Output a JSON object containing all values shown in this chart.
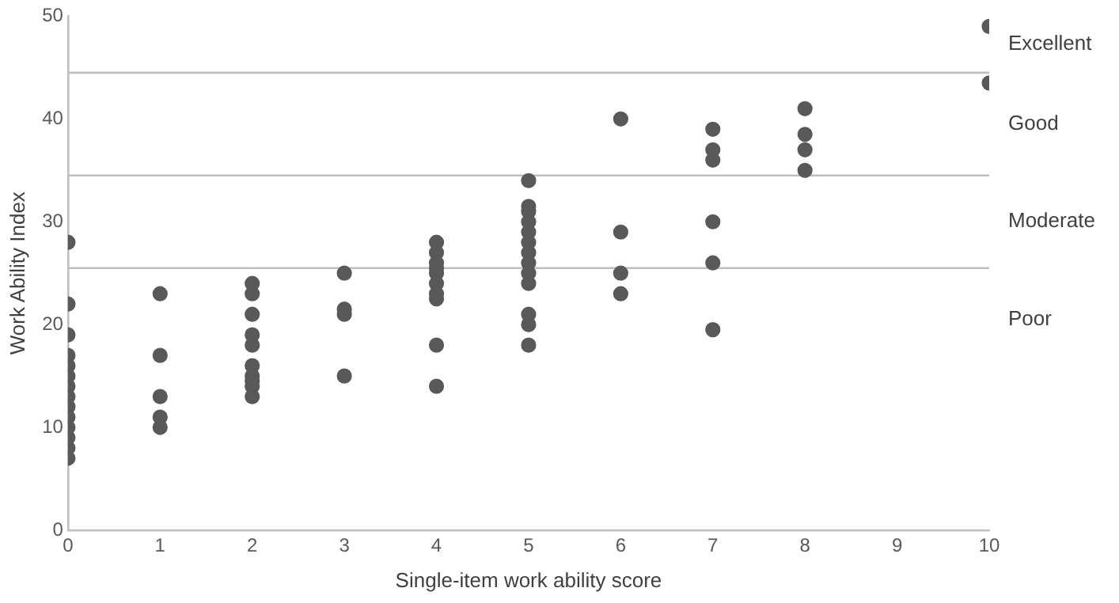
{
  "chart_data": {
    "type": "scatter",
    "xlabel": "Single-item work ability score",
    "ylabel": "Work Ability Index",
    "x": [
      0,
      0,
      0,
      0,
      0,
      0,
      0,
      0,
      0,
      0,
      0,
      0,
      0,
      0,
      1,
      1,
      1,
      1,
      1,
      2,
      2,
      2,
      2,
      2,
      2,
      2,
      2,
      2,
      2,
      3,
      3,
      3,
      3,
      4,
      4,
      4,
      4,
      4,
      4,
      4,
      4,
      4,
      4,
      5,
      5,
      5,
      5,
      5,
      5,
      5,
      5,
      5,
      5,
      5,
      5,
      5,
      6,
      6,
      6,
      6,
      7,
      7,
      7,
      7,
      7,
      7,
      8,
      8,
      8,
      8,
      10,
      10
    ],
    "values": [
      28,
      22,
      19,
      17,
      16,
      15,
      14,
      13,
      12,
      11,
      10,
      9,
      8,
      7,
      23,
      17,
      13,
      11,
      10,
      24,
      23,
      21,
      19,
      18,
      16,
      15,
      14.5,
      14,
      13,
      25,
      21.5,
      21,
      15,
      28,
      27,
      26,
      25.5,
      25,
      24,
      23,
      22.5,
      18,
      14,
      34,
      31.5,
      31,
      30,
      29,
      28,
      27,
      26,
      25,
      24,
      21,
      20,
      18,
      40,
      29,
      25,
      23,
      39,
      37,
      36,
      30,
      26,
      19.5,
      41,
      38.5,
      37,
      35,
      49,
      43.5
    ],
    "color": "#595959",
    "marker": "circle",
    "xlim": [
      0,
      10
    ],
    "xticks": [
      0,
      1,
      2,
      3,
      4,
      5,
      6,
      7,
      8,
      9,
      10
    ],
    "ylim": [
      0,
      50
    ],
    "yticks": [
      0,
      10,
      20,
      30,
      40,
      50
    ],
    "grid": false,
    "ref_lines": [
      {
        "axis": "y",
        "value": 25.5
      },
      {
        "axis": "y",
        "value": 34.5
      },
      {
        "axis": "y",
        "value": 44.5
      }
    ],
    "annotations": [
      "Excellent",
      "Good",
      "Moderate",
      "Poor"
    ],
    "legend": false
  }
}
